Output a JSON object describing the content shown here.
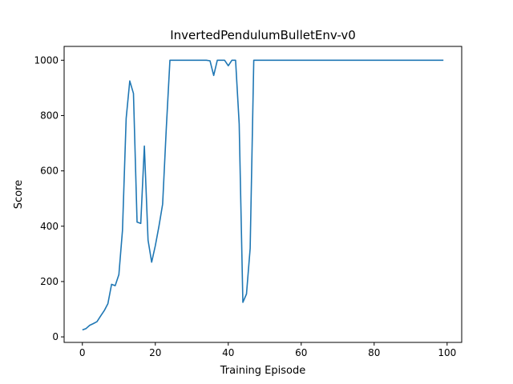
{
  "chart_data": {
    "type": "line",
    "title": "InvertedPendulumBulletEnv-v0",
    "xlabel": "Training Episode",
    "ylabel": "Score",
    "xlim": [
      -5,
      104
    ],
    "ylim": [
      -20,
      1050
    ],
    "xticks": [
      0,
      20,
      40,
      60,
      80,
      100
    ],
    "yticks": [
      0,
      200,
      400,
      600,
      800,
      1000
    ],
    "grid": false,
    "color": "#1f77b4",
    "series": [
      {
        "x": [
          0,
          1,
          2,
          3,
          4,
          5,
          6,
          7,
          8,
          9,
          10,
          11,
          12,
          13,
          14,
          15,
          16,
          17,
          18,
          19,
          20,
          21,
          22,
          23,
          24,
          25,
          26,
          27,
          28,
          29,
          30,
          31,
          32,
          33,
          34,
          35,
          36,
          37,
          38,
          39,
          40,
          41,
          42,
          43,
          44,
          45,
          46,
          47,
          48,
          49,
          50,
          51,
          52,
          53,
          54,
          55,
          56,
          57,
          58,
          59,
          60,
          61,
          62,
          63,
          64,
          65,
          66,
          67,
          68,
          69,
          70,
          71,
          72,
          73,
          74,
          75,
          76,
          77,
          78,
          79,
          80,
          81,
          82,
          83,
          84,
          85,
          86,
          87,
          88,
          89,
          90,
          91,
          92,
          93,
          94,
          95,
          96,
          97,
          98,
          99
        ],
        "values": [
          25,
          30,
          42,
          48,
          55,
          75,
          95,
          120,
          190,
          185,
          225,
          385,
          790,
          925,
          880,
          415,
          410,
          690,
          350,
          270,
          330,
          400,
          480,
          750,
          1000,
          1000,
          1000,
          1000,
          1000,
          1000,
          1000,
          1000,
          1000,
          1000,
          1000,
          998,
          945,
          1000,
          1000,
          1000,
          980,
          1000,
          1000,
          770,
          125,
          155,
          320,
          1000,
          1000,
          1000,
          1000,
          1000,
          1000,
          1000,
          1000,
          1000,
          1000,
          1000,
          1000,
          1000,
          1000,
          1000,
          1000,
          1000,
          1000,
          1000,
          1000,
          1000,
          1000,
          1000,
          1000,
          1000,
          1000,
          1000,
          1000,
          1000,
          1000,
          1000,
          1000,
          1000,
          1000,
          1000,
          1000,
          1000,
          1000,
          1000,
          1000,
          1000,
          1000,
          1000,
          1000,
          1000,
          1000,
          1000,
          1000,
          1000,
          1000,
          1000,
          1000,
          1000
        ]
      }
    ]
  }
}
